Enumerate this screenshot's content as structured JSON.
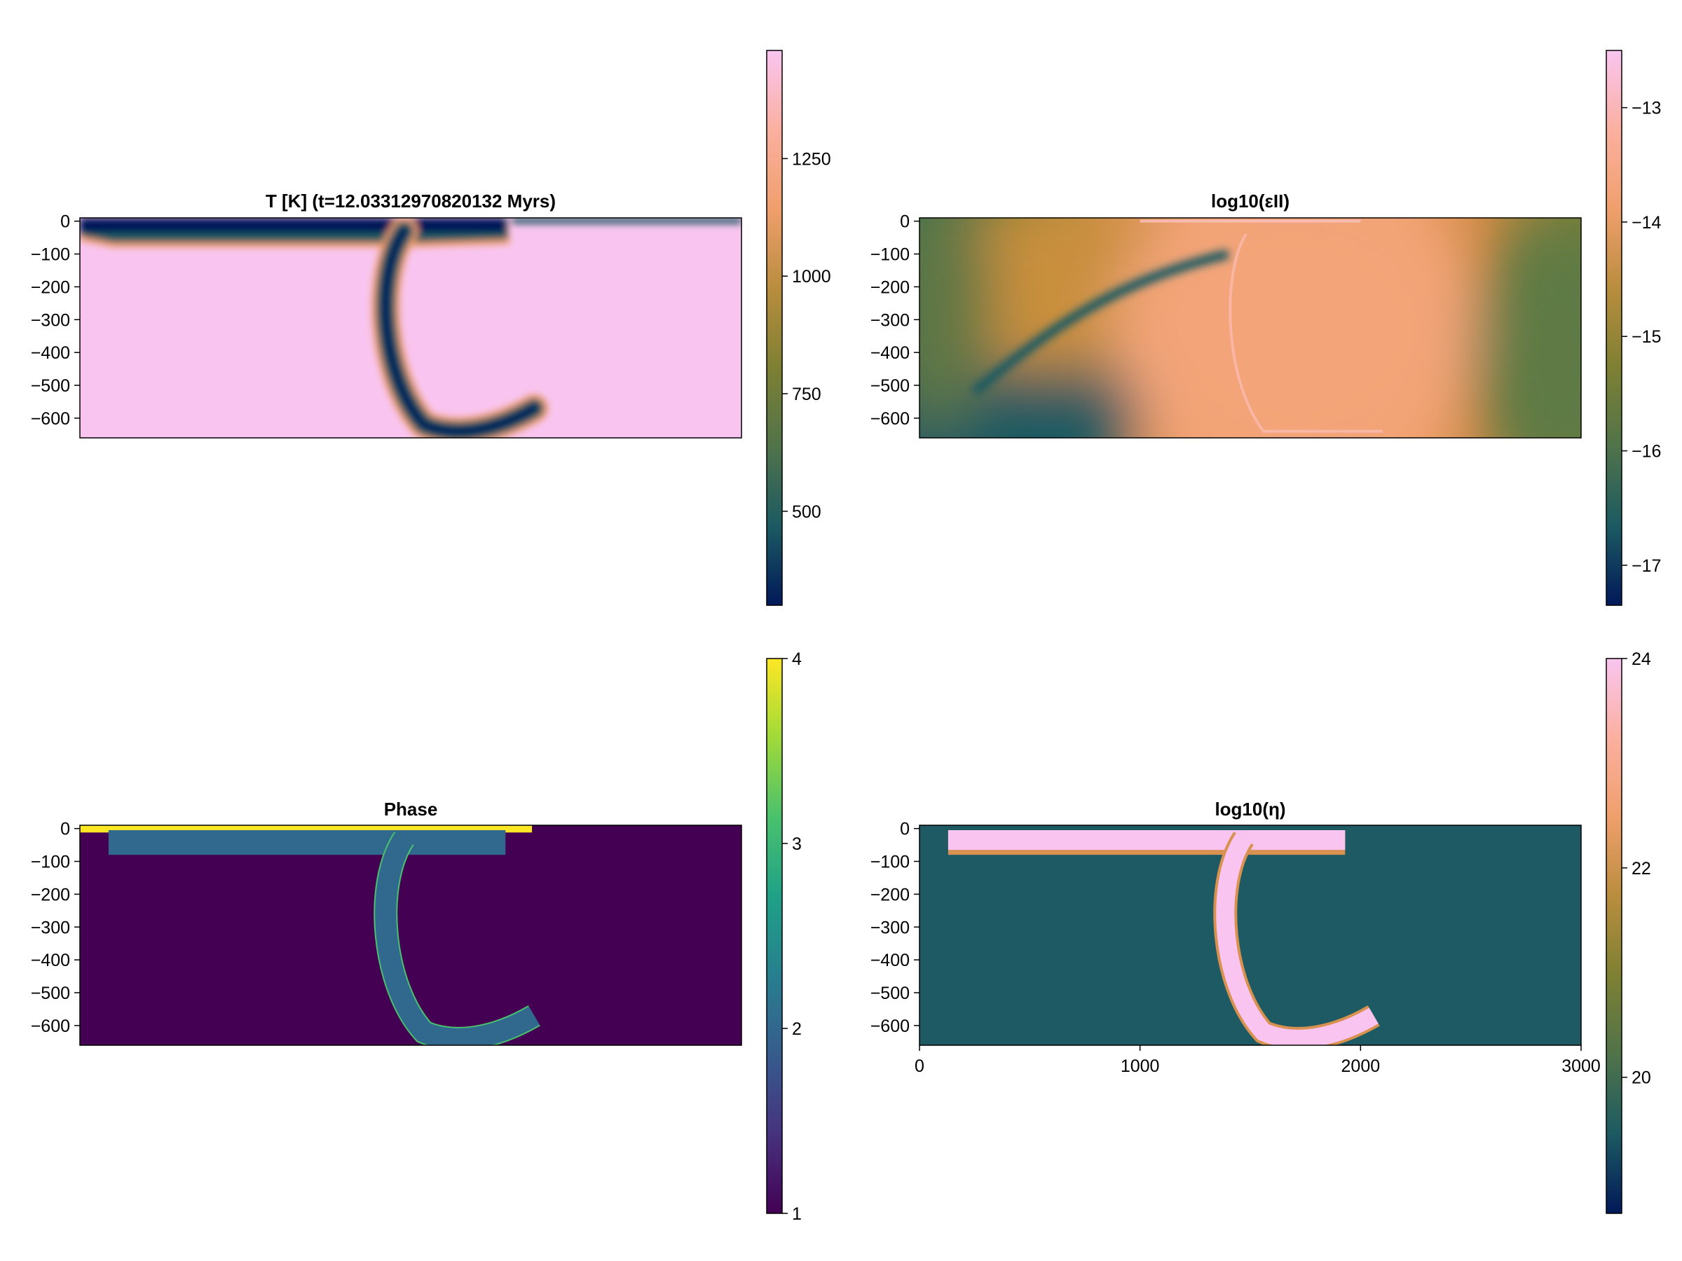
{
  "chart_data": [
    {
      "type": "heatmap",
      "title": "T [K]  (t=12.03312970820132 Myrs)",
      "xlabel": "",
      "ylabel": "",
      "xlim": [
        0,
        3000
      ],
      "ylim": [
        -660,
        10
      ],
      "x_ticks": [],
      "y_ticks": [
        0,
        -100,
        -200,
        -300,
        -400,
        -500,
        -600
      ],
      "y_tick_labels": [
        "0",
        "−100",
        "−200",
        "−300",
        "−400",
        "−500",
        "−600"
      ],
      "colorbar": {
        "range": [
          300,
          1480
        ],
        "ticks": [
          500,
          750,
          1000,
          1250
        ],
        "tick_labels": [
          "500",
          "750",
          "1000",
          "1250"
        ],
        "colormap": "batlow",
        "colors": [
          "#011959",
          "#1c5a62",
          "#50734a",
          "#7e8033",
          "#b98d3e",
          "#f09f6c",
          "#fbb0a0",
          "#f9c5f0"
        ]
      },
      "field_description": "cold lithosphere ~0-100 km thick on left plate, thin cold layer on right, slab sinking in C-shape to ~650 km",
      "background_value": 1480,
      "cold_value": 300
    },
    {
      "type": "heatmap",
      "title": "log10(εII)",
      "xlabel": "",
      "ylabel": "",
      "xlim": [
        0,
        3000
      ],
      "ylim": [
        -660,
        10
      ],
      "x_ticks": [],
      "y_ticks": [
        0,
        -100,
        -200,
        -300,
        -400,
        -500,
        -600
      ],
      "y_tick_labels": [
        "0",
        "−100",
        "−200",
        "−300",
        "−400",
        "−500",
        "−600"
      ],
      "colorbar": {
        "range": [
          -17.35,
          -12.5
        ],
        "ticks": [
          -17,
          -16,
          -15,
          -14,
          -13
        ],
        "tick_labels": [
          "−17",
          "−16",
          "−15",
          "−14",
          "−13"
        ],
        "colormap": "batlow",
        "colors": [
          "#011959",
          "#1c5a62",
          "#50734a",
          "#7e8033",
          "#b98d3e",
          "#f09f6c",
          "#fbb0a0",
          "#f9c5f0"
        ]
      }
    },
    {
      "type": "heatmap",
      "title": "Phase",
      "xlabel": "",
      "ylabel": "",
      "xlim": [
        0,
        3000
      ],
      "ylim": [
        -660,
        10
      ],
      "x_ticks": [],
      "y_ticks": [
        0,
        -100,
        -200,
        -300,
        -400,
        -500,
        -600
      ],
      "y_tick_labels": [
        "0",
        "−100",
        "−200",
        "−300",
        "−400",
        "−500",
        "−600"
      ],
      "colorbar": {
        "range": [
          1,
          4
        ],
        "ticks": [
          1,
          2,
          3,
          4
        ],
        "tick_labels": [
          "1",
          "2",
          "3",
          "4"
        ],
        "colormap": "viridis",
        "colors": [
          "#440154",
          "#46327e",
          "#365c8d",
          "#277f8e",
          "#1fa187",
          "#4ac16d",
          "#a0da39",
          "#fde725"
        ]
      },
      "phases": {
        "mantle": 1,
        "lithosphere": 2,
        "weak_zone": 3,
        "crust": 4
      }
    },
    {
      "type": "heatmap",
      "title": "log10(η)",
      "xlabel": "",
      "ylabel": "",
      "xlim": [
        0,
        3000
      ],
      "ylim": [
        -660,
        10
      ],
      "x_ticks": [
        0,
        1000,
        2000,
        3000
      ],
      "x_tick_labels": [
        "0",
        "1000",
        "2000",
        "3000"
      ],
      "y_ticks": [
        0,
        -100,
        -200,
        -300,
        -400,
        -500,
        -600
      ],
      "y_tick_labels": [
        "0",
        "−100",
        "−200",
        "−300",
        "−400",
        "−500",
        "−600"
      ],
      "colorbar": {
        "range": [
          18.7,
          24
        ],
        "ticks": [
          20,
          22,
          24
        ],
        "tick_labels": [
          "20",
          "22",
          "24"
        ],
        "colormap": "batlow",
        "colors": [
          "#011959",
          "#1c5a62",
          "#50734a",
          "#7e8033",
          "#b98d3e",
          "#f09f6c",
          "#fbb0a0",
          "#f9c5f0"
        ]
      },
      "background_value": 20,
      "slab_value": 24
    }
  ]
}
